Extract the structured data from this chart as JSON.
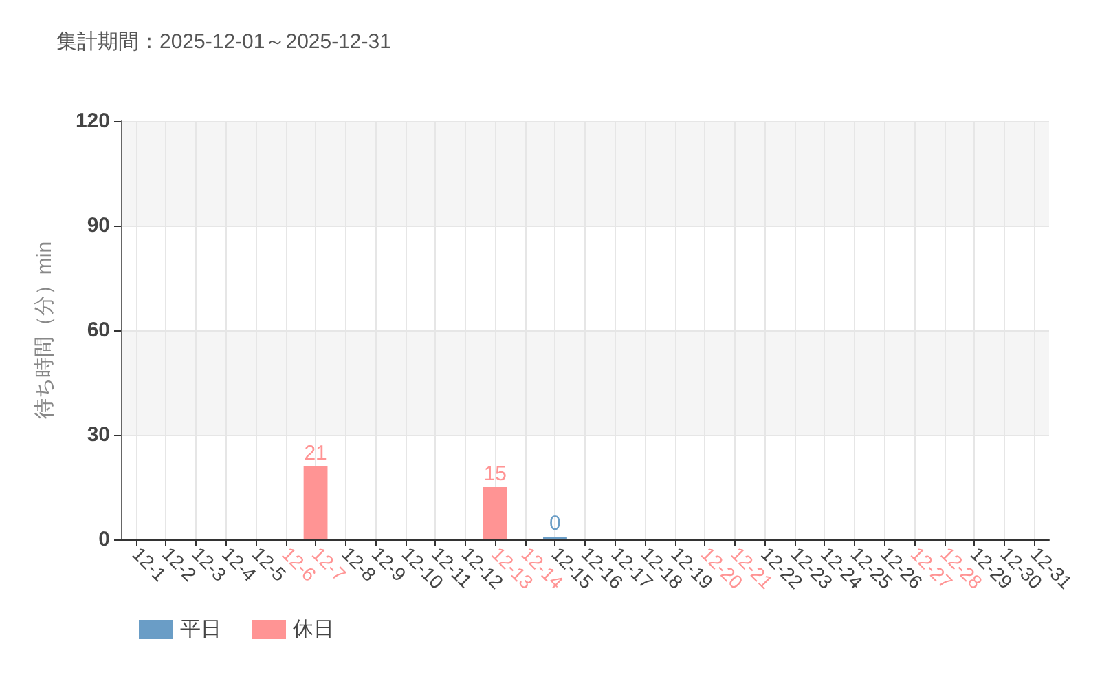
{
  "chart_data": {
    "type": "bar",
    "title": "集計期間：2025-12-01～2025-12-31",
    "ylabel": "待ち時間（分）min",
    "categories": [
      "12-1",
      "12-2",
      "12-3",
      "12-4",
      "12-5",
      "12-6",
      "12-7",
      "12-8",
      "12-9",
      "12-10",
      "12-11",
      "12-12",
      "12-13",
      "12-14",
      "12-15",
      "12-16",
      "12-17",
      "12-18",
      "12-19",
      "12-20",
      "12-21",
      "12-22",
      "12-23",
      "12-24",
      "12-25",
      "12-26",
      "12-27",
      "12-28",
      "12-29",
      "12-30",
      "12-31"
    ],
    "series": [
      {
        "name": "平日",
        "color": "#6a9dc6",
        "x": [
          "12-1",
          "12-2",
          "12-3",
          "12-4",
          "12-5",
          "12-8",
          "12-9",
          "12-10",
          "12-11",
          "12-12",
          "12-15",
          "12-16",
          "12-17",
          "12-18",
          "12-19",
          "12-22",
          "12-23",
          "12-24",
          "12-25",
          "12-26",
          "12-29",
          "12-30",
          "12-31"
        ],
        "values": [
          null,
          null,
          null,
          null,
          null,
          null,
          null,
          null,
          null,
          null,
          0,
          null,
          null,
          null,
          null,
          null,
          null,
          null,
          null,
          null,
          null,
          null,
          null
        ]
      },
      {
        "name": "休日",
        "color": "#ff9494",
        "x": [
          "12-6",
          "12-7",
          "12-13",
          "12-14",
          "12-20",
          "12-21",
          "12-27",
          "12-28"
        ],
        "values": [
          null,
          21,
          15,
          null,
          null,
          null,
          null,
          null
        ]
      }
    ],
    "ylim": [
      0,
      120
    ],
    "yticks": [
      0,
      30,
      60,
      90,
      120
    ],
    "grid": true,
    "legend": "bottom left",
    "data_labels": true
  }
}
